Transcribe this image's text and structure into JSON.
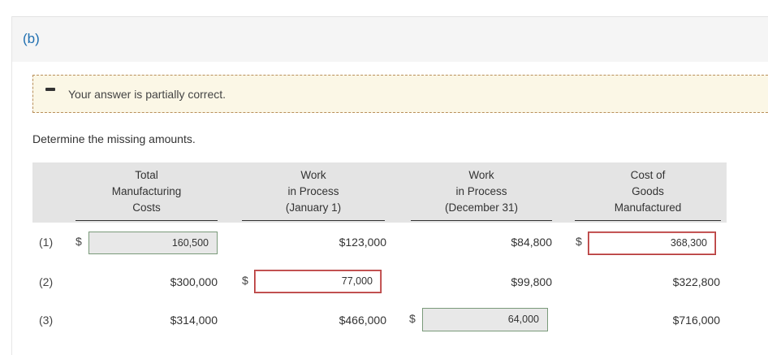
{
  "part": {
    "label": "(b)"
  },
  "feedback": {
    "message": "Your answer is partially correct."
  },
  "prompt": "Determine the missing amounts.",
  "columns": [
    {
      "lines": [
        "Total",
        "Manufacturing",
        "Costs"
      ]
    },
    {
      "lines": [
        "Work",
        "in Process",
        "(January 1)"
      ]
    },
    {
      "lines": [
        "Work",
        "in Process",
        "(December 31)"
      ]
    },
    {
      "lines": [
        "Cost of",
        "Goods",
        "Manufactured"
      ]
    }
  ],
  "rows": [
    {
      "num": "(1)",
      "total_mfg_costs": {
        "type": "input",
        "value": "160,500",
        "status": "correct",
        "currency": "$"
      },
      "wip_jan1": {
        "type": "text",
        "value": "$123,000"
      },
      "wip_dec31": {
        "type": "text",
        "value": "$84,800"
      },
      "cogm": {
        "type": "input",
        "value": "368,300",
        "status": "incorrect",
        "currency": "$"
      }
    },
    {
      "num": "(2)",
      "total_mfg_costs": {
        "type": "text",
        "value": "$300,000"
      },
      "wip_jan1": {
        "type": "input",
        "value": "77,000",
        "status": "incorrect",
        "currency": "$"
      },
      "wip_dec31": {
        "type": "text",
        "value": "$99,800"
      },
      "cogm": {
        "type": "text",
        "value": "$322,800"
      }
    },
    {
      "num": "(3)",
      "total_mfg_costs": {
        "type": "text",
        "value": "$314,000"
      },
      "wip_jan1": {
        "type": "text",
        "value": "$466,000"
      },
      "wip_dec31": {
        "type": "input",
        "value": "64,000",
        "status": "correct",
        "currency": "$"
      },
      "cogm": {
        "type": "text",
        "value": "$716,000"
      }
    }
  ],
  "icons": {
    "feedback": "partial-minus-icon"
  },
  "colors": {
    "part_label": "#1f6fb0",
    "feedback_bg": "#fbf7e6",
    "incorrect_border": "#b23a3a",
    "correct_border": "#7a9a7a"
  }
}
